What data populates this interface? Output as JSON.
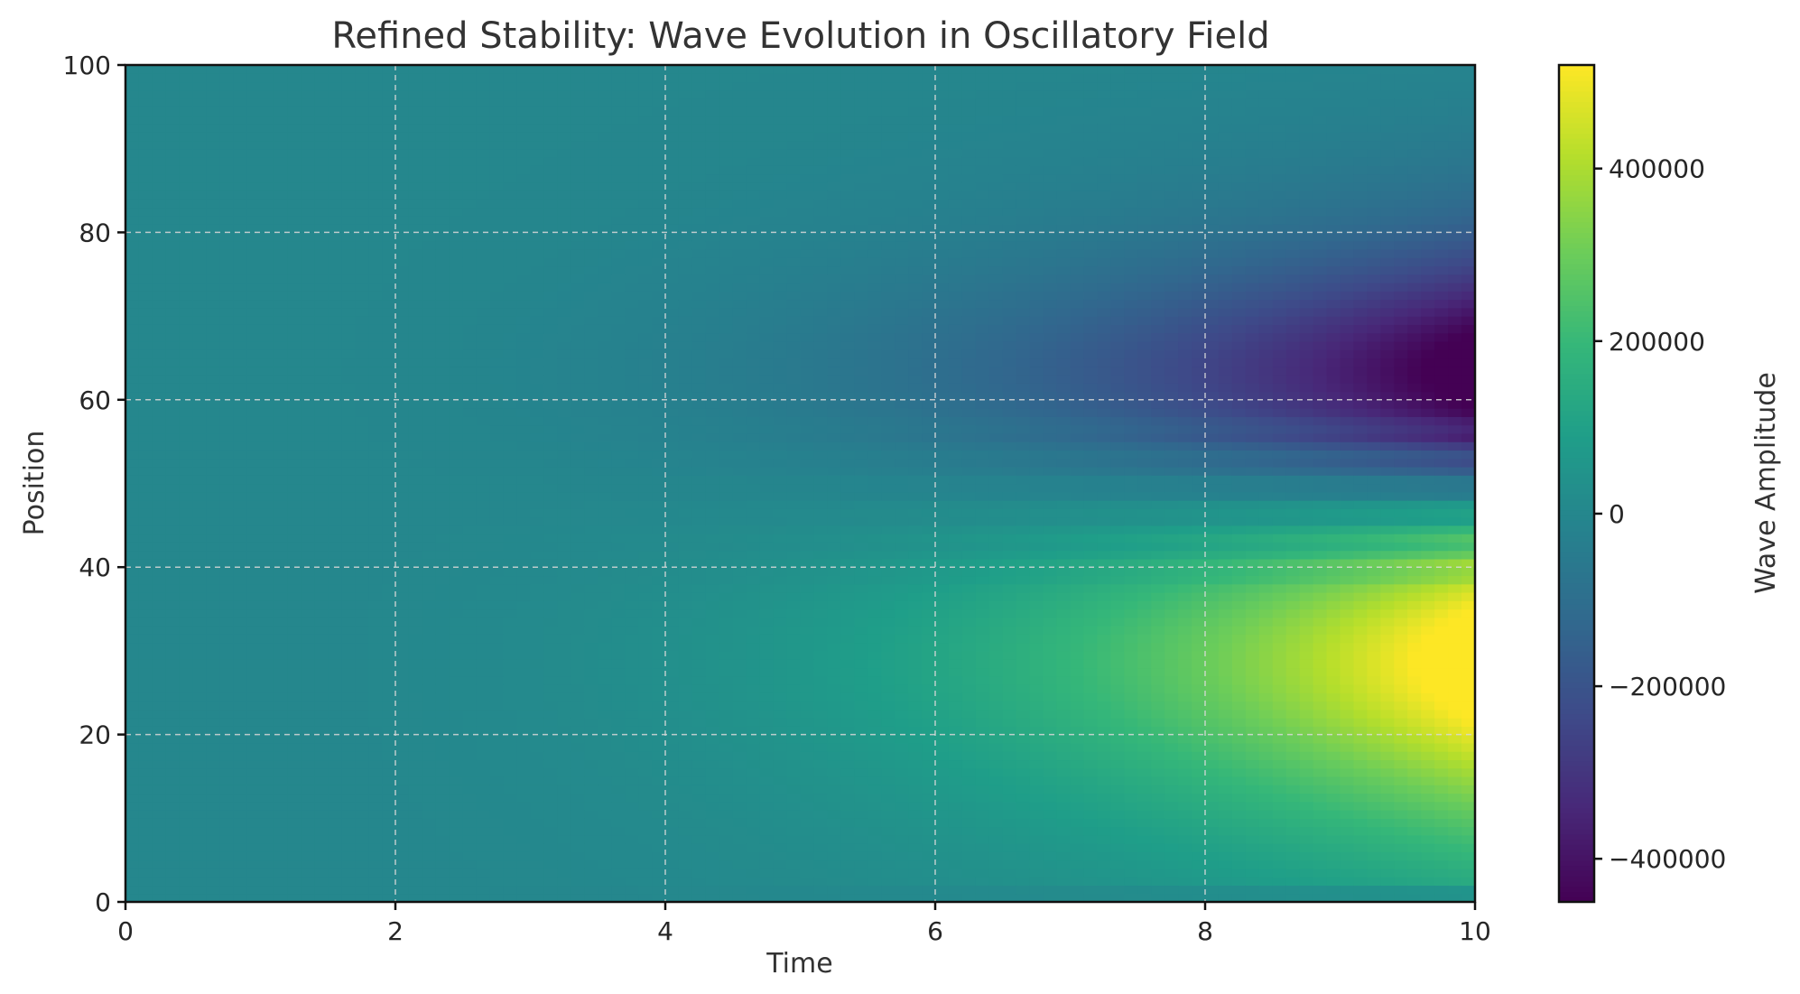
{
  "chart_data": {
    "type": "heatmap",
    "title": "Refined Stability: Wave Evolution in Oscillatory Field",
    "xlabel": "Time",
    "ylabel": "Position",
    "xlim": [
      0,
      10
    ],
    "ylim": [
      0,
      100
    ],
    "xticks": [
      "0",
      "2",
      "4",
      "6",
      "8",
      "10"
    ],
    "yticks": [
      "0",
      "20",
      "40",
      "60",
      "80",
      "100"
    ],
    "grid": true,
    "colormap": "viridis",
    "colorbar": {
      "label": "Wave Amplitude",
      "range": [
        -450000,
        520000
      ],
      "ticks": [
        "−400000",
        "−200000",
        "0",
        "200000",
        "400000"
      ],
      "tick_values": [
        -400000,
        -200000,
        0,
        200000,
        400000
      ]
    },
    "features": [
      {
        "label": "positive lobe",
        "x_center": 10,
        "y_center": 31,
        "peak": 520000
      },
      {
        "label": "negative lobe",
        "x_center": 10,
        "y_center": 62,
        "peak": -450000
      },
      {
        "label": "weak negative band",
        "x_center": 6,
        "y_center": 55,
        "peak": -120000
      }
    ],
    "colors": {
      "axes": "#111111",
      "grid": "#d8d8d8",
      "background": "#ffffff"
    }
  }
}
